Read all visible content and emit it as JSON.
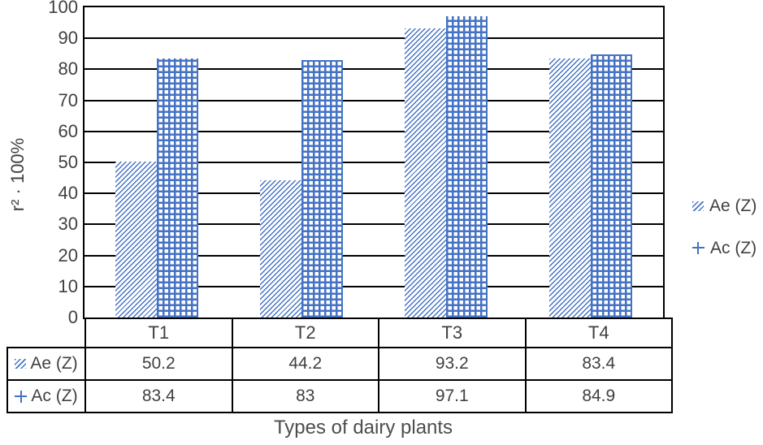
{
  "chart_data": {
    "type": "bar",
    "title": "",
    "categories": [
      "T1",
      "T2",
      "T3",
      "T4"
    ],
    "series": [
      {
        "name": "Ae (Z)",
        "pattern": "diagonal-hatch",
        "values": [
          50.2,
          44.2,
          93.2,
          83.4
        ]
      },
      {
        "name": "Ac (Z)",
        "pattern": "grid-crosshatch",
        "values": [
          83.4,
          83,
          97.1,
          84.9
        ]
      }
    ],
    "xlabel": "Types of dairy plants",
    "ylabel": "r² · 100%",
    "ylim": [
      0,
      100
    ],
    "yticks": [
      0,
      10,
      20,
      30,
      40,
      50,
      60,
      70,
      80,
      90,
      100
    ],
    "grid": "horizontal-black-lines",
    "legend_position": "right",
    "data_table_shown": true,
    "bar_color": "#4472C4",
    "text_color": "#404040",
    "line_color": "#000000",
    "background_color": "#ffffff"
  }
}
